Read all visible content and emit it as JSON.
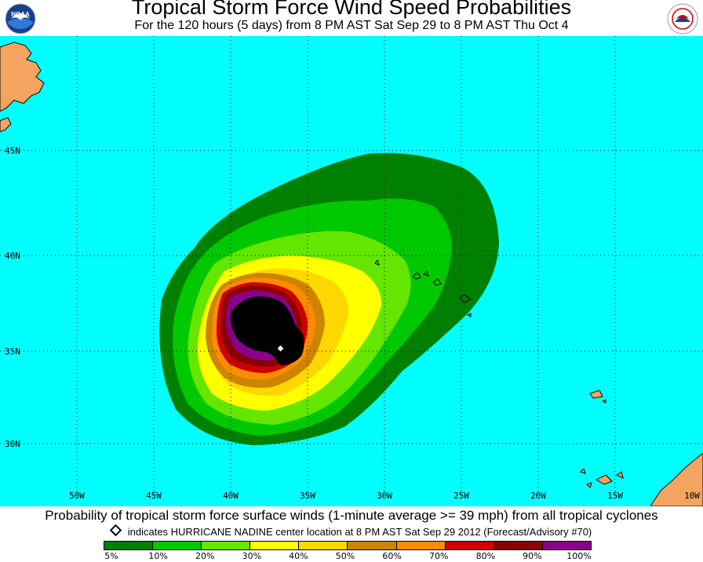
{
  "header": {
    "title": "Tropical Storm Force Wind Speed Probabilities",
    "subtitle": "For the 120 hours (5 days) from 8 PM AST Sat Sep 29 to 8 PM AST Thu Oct 4",
    "left_logo": "noaa-logo",
    "left_logo_text": "NOAA",
    "right_logo": "national-weather-service-logo"
  },
  "map": {
    "ocean_color": "#00ffff",
    "land_color": "#f4a460",
    "lat_labels": [
      "45N",
      "40N",
      "35N",
      "30N"
    ],
    "lon_labels": [
      "50W",
      "45W",
      "40W",
      "35W",
      "30W",
      "25W",
      "20W",
      "15W",
      "10W"
    ],
    "storm_center_marker": "diamond"
  },
  "footer": {
    "caption": "Probability of tropical storm force surface winds (1-minute average >= 39 mph) from all tropical cyclones",
    "center_note": "indicates HURRICANE NADINE center location at 8 PM AST Sat Sep 29 2012 (Forecast/Advisory #70)",
    "scale_colors": [
      "#008000",
      "#00c800",
      "#64e600",
      "#ffff00",
      "#ffd700",
      "#cd8500",
      "#ff8c00",
      "#cc0000",
      "#8b0000",
      "#8b008b"
    ],
    "scale_labels": [
      "5%",
      "10%",
      "20%",
      "30%",
      "40%",
      "50%",
      "60%",
      "70%",
      "80%",
      "90%",
      "100%"
    ]
  }
}
